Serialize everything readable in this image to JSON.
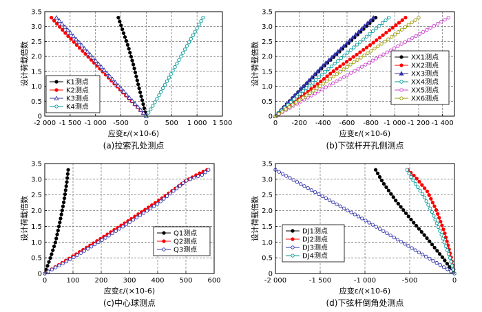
{
  "chart_data": [
    {
      "type": "line",
      "caption": "(a)拉索孔处测点",
      "xlabel": "应变ε/(×10-6)",
      "ylabel": "设计荷载倍数",
      "xlim": [
        -2000,
        1500
      ],
      "ylim": [
        0,
        3.5
      ],
      "xticks": [
        -2000,
        -1500,
        -1000,
        -500,
        0,
        500,
        1000,
        1500
      ],
      "xtick_labels": [
        "-2 000",
        "-1 500",
        "-1 000",
        "-500",
        "0",
        "500",
        "1 000",
        "1 500"
      ],
      "yticks": [
        0,
        0.5,
        1.0,
        1.5,
        2.0,
        2.5,
        3.0,
        3.5
      ],
      "ytick_labels": [
        "0",
        "0.5",
        "1.0",
        "1.5",
        "2.0",
        "2.5",
        "3.0",
        "3.5"
      ],
      "grid": true,
      "legend_position": "bottom-left",
      "series": [
        {
          "name": "K1测点",
          "color": "#000000",
          "marker": "circle-filled",
          "x": [
            -550,
            -450,
            -350,
            -250,
            -150,
            -60,
            0
          ],
          "y": [
            3.3,
            2.8,
            2.3,
            1.7,
            1.0,
            0.4,
            0
          ]
        },
        {
          "name": "K2测点",
          "color": "#ff0000",
          "marker": "circle-filled",
          "x": [
            -1870,
            -1550,
            -1150,
            -750,
            -380,
            -100,
            0
          ],
          "y": [
            3.3,
            2.7,
            2.0,
            1.3,
            0.65,
            0.17,
            0
          ]
        },
        {
          "name": "K3测点",
          "color": "#3333aa",
          "marker": "triangle-open",
          "x": [
            -1770,
            -1500,
            -1100,
            -700,
            -350,
            -90,
            0
          ],
          "y": [
            3.3,
            2.8,
            2.05,
            1.3,
            0.65,
            0.17,
            0
          ]
        },
        {
          "name": "K4测点",
          "color": "#009999",
          "marker": "circle-open",
          "x": [
            1120,
            900,
            650,
            400,
            200,
            50,
            0
          ],
          "y": [
            3.3,
            2.65,
            1.9,
            1.15,
            0.55,
            0.13,
            0
          ]
        }
      ]
    },
    {
      "type": "line",
      "caption": "(b)下弦杆开孔侧测点",
      "xlabel": "应变ε/(×10-6)",
      "ylabel": "设计荷载倍数",
      "xlim": [
        0,
        -1500
      ],
      "ylim": [
        0,
        3.5
      ],
      "xticks": [
        0,
        -200,
        -400,
        -600,
        -800,
        -1000,
        -1200,
        -1400
      ],
      "xtick_labels": [
        "0",
        "-200",
        "-400",
        "-600",
        "-800",
        "-1 000",
        "-1 200",
        "-1 400"
      ],
      "yticks": [
        0,
        0.5,
        1.0,
        1.5,
        2.0,
        2.5,
        3.0,
        3.5
      ],
      "ytick_labels": [
        "0",
        "0.5",
        "1.0",
        "1.5",
        "2.0",
        "2.5",
        "3.0",
        "3.5"
      ],
      "grid": true,
      "legend_position": "bottom-right",
      "series": [
        {
          "name": "XX1测点",
          "color": "#000000",
          "marker": "circle-filled",
          "x": [
            0,
            -200,
            -400,
            -600,
            -840
          ],
          "y": [
            0,
            0.85,
            1.65,
            2.4,
            3.3
          ]
        },
        {
          "name": "XX2测点",
          "color": "#ff0000",
          "marker": "circle-filled",
          "x": [
            0,
            -250,
            -500,
            -800,
            -1090
          ],
          "y": [
            0,
            0.75,
            1.55,
            2.4,
            3.3
          ]
        },
        {
          "name": "XX3测点",
          "color": "#3333aa",
          "marker": "triangle-filled",
          "x": [
            0,
            -200,
            -400,
            -600,
            -820
          ],
          "y": [
            0,
            0.85,
            1.7,
            2.45,
            3.3
          ]
        },
        {
          "name": "XX4测点",
          "color": "#009999",
          "marker": "circle-open",
          "x": [
            0,
            -220,
            -450,
            -700,
            -950
          ],
          "y": [
            0,
            0.8,
            1.6,
            2.45,
            3.3
          ]
        },
        {
          "name": "XX5测点",
          "color": "#cc44cc",
          "marker": "circle-open",
          "x": [
            0,
            -350,
            -700,
            -1050,
            -1450
          ],
          "y": [
            0,
            0.8,
            1.6,
            2.4,
            3.3
          ]
        },
        {
          "name": "XX6测点",
          "color": "#999900",
          "marker": "circle-open",
          "x": [
            0,
            -300,
            -600,
            -900,
            -1200
          ],
          "y": [
            0,
            0.8,
            1.65,
            2.45,
            3.3
          ]
        }
      ]
    },
    {
      "type": "line",
      "caption": "(c)中心球测点",
      "xlabel": "应变ε/(×10-6)",
      "ylabel": "设计荷载倍数",
      "xlim": [
        0,
        600
      ],
      "ylim": [
        0,
        3.5
      ],
      "xticks": [
        0,
        100,
        200,
        300,
        400,
        500,
        600
      ],
      "xtick_labels": [
        "0",
        "100",
        "200",
        "300",
        "400",
        "500",
        "600"
      ],
      "yticks": [
        0,
        0.5,
        1.0,
        1.5,
        2.0,
        2.5,
        3.0,
        3.5
      ],
      "ytick_labels": [
        "0",
        "0.5",
        "1.0",
        "1.5",
        "2.0",
        "2.5",
        "3.0",
        "3.5"
      ],
      "grid": true,
      "legend_position": "bottom-right",
      "series": [
        {
          "name": "Q1测点",
          "color": "#000000",
          "marker": "circle-filled",
          "x": [
            0,
            20,
            38,
            55,
            68,
            78,
            83
          ],
          "y": [
            0,
            0.5,
            1.0,
            1.7,
            2.3,
            2.9,
            3.3
          ]
        },
        {
          "name": "Q2测点",
          "color": "#ff0000",
          "marker": "circle-filled",
          "x": [
            0,
            100,
            200,
            300,
            400,
            500,
            550,
            575
          ],
          "y": [
            0,
            0.55,
            1.12,
            1.7,
            2.3,
            2.95,
            3.2,
            3.3
          ]
        },
        {
          "name": "Q3测点",
          "color": "#3333aa",
          "marker": "circle-open",
          "x": [
            0,
            100,
            200,
            300,
            400,
            500,
            560,
            572,
            580
          ],
          "y": [
            0,
            0.5,
            1.05,
            1.63,
            2.22,
            2.95,
            3.15,
            3.25,
            3.3
          ]
        }
      ]
    },
    {
      "type": "line",
      "caption": "(d)下弦杆倒角处测点",
      "xlabel": "应变ε/(×10-6)",
      "ylabel": "设计荷载倍数",
      "xlim": [
        -2000,
        0
      ],
      "ylim": [
        0,
        3.5
      ],
      "xticks": [
        -2000,
        -1500,
        -1000,
        -500,
        0
      ],
      "xtick_labels": [
        "-2 000",
        "-1 500",
        "-1 000",
        "-500",
        "0"
      ],
      "yticks": [
        0,
        0.5,
        1.0,
        1.5,
        2.0,
        2.5,
        3.0,
        3.5
      ],
      "ytick_labels": [
        "0",
        "0.5",
        "1.0",
        "1.5",
        "2.0",
        "2.5",
        "3.0",
        "3.5"
      ],
      "grid": true,
      "legend_position": "bottom-left",
      "series": [
        {
          "name": "DJ1测点",
          "color": "#000000",
          "marker": "circle-filled",
          "x": [
            -880,
            -800,
            -650,
            -480,
            -300,
            -130,
            0
          ],
          "y": [
            3.3,
            2.9,
            2.3,
            1.7,
            1.1,
            0.5,
            0
          ]
        },
        {
          "name": "DJ2测点",
          "color": "#ff0000",
          "marker": "circle-filled",
          "x": [
            -520,
            -430,
            -300,
            -200,
            -110,
            -40,
            0
          ],
          "y": [
            3.3,
            3.05,
            2.6,
            2.0,
            1.3,
            0.55,
            0
          ]
        },
        {
          "name": "DJ3测点",
          "color": "#3333aa",
          "marker": "circle-open",
          "x": [
            -2000,
            -1500,
            -1000,
            -500,
            0
          ],
          "y": [
            3.3,
            2.5,
            1.7,
            0.85,
            0
          ]
        },
        {
          "name": "DJ4测点",
          "color": "#009999",
          "marker": "circle-open",
          "x": [
            -530,
            -470,
            -350,
            -240,
            -140,
            -50,
            0
          ],
          "y": [
            3.3,
            3.0,
            2.5,
            1.9,
            1.2,
            0.5,
            0
          ]
        }
      ]
    }
  ]
}
